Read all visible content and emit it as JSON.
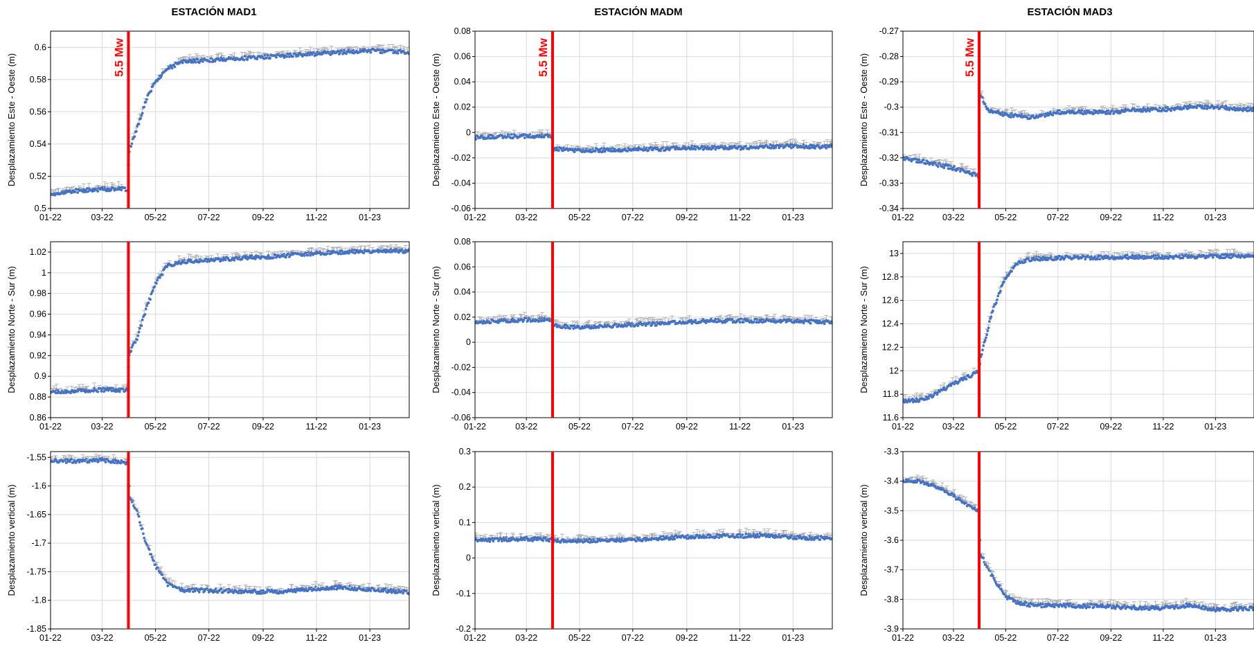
{
  "figure": {
    "column_titles": [
      "ESTACIÓN MAD1",
      "ESTACIÓN MADM",
      "ESTACIÓN MAD3"
    ],
    "earthquake_label": "5.5 Mw",
    "event_date": "2022-03-31",
    "colors": {
      "points": "#4472c4",
      "errorbars": "#a6a6a6",
      "event_line": "#ff0000",
      "grid": "#d9d9d9",
      "axis": "#000000"
    }
  },
  "chart_data": [
    {
      "id": "mad1-ew",
      "station": "ESTACIÓN MAD1",
      "type": "scatter",
      "ylabel": "Desplazamiento Este - Oeste (m)",
      "xlim": [
        "2022-01-01",
        "2023-02-15"
      ],
      "ylim": [
        0.5,
        0.61
      ],
      "yticks": [
        0.5,
        0.52,
        0.54,
        0.56,
        0.58,
        0.6
      ],
      "ytick_labels": [
        "0.5",
        "0.52",
        "0.54",
        "0.56",
        "0.58",
        "0.6"
      ],
      "xticks": [
        "2022-01-01",
        "2022-03-01",
        "2022-05-01",
        "2022-07-01",
        "2022-09-01",
        "2022-11-01",
        "2023-01-01"
      ],
      "xtick_labels": [
        "01-22",
        "03-22",
        "05-22",
        "07-22",
        "09-22",
        "11-22",
        "01-23"
      ],
      "event_line_x": "2022-03-31",
      "show_event_label": true,
      "series": [
        {
          "x": [
            "2022-01-01",
            "2022-02-01",
            "2022-03-01",
            "2022-03-30",
            "2022-04-01",
            "2022-04-10",
            "2022-04-20",
            "2022-05-01",
            "2022-05-15",
            "2022-06-01",
            "2022-07-01",
            "2022-08-01",
            "2022-09-01",
            "2022-10-01",
            "2022-11-01",
            "2022-12-01",
            "2023-01-01",
            "2023-02-15"
          ],
          "y": [
            0.509,
            0.511,
            0.512,
            0.512,
            0.536,
            0.55,
            0.567,
            0.579,
            0.587,
            0.591,
            0.592,
            0.593,
            0.594,
            0.595,
            0.596,
            0.597,
            0.598,
            0.597
          ]
        }
      ]
    },
    {
      "id": "mad1-ns",
      "station": "ESTACIÓN MAD1",
      "type": "scatter",
      "ylabel": "Desplazamiento Norte - Sur (m)",
      "xlim": [
        "2022-01-01",
        "2023-02-15"
      ],
      "ylim": [
        0.86,
        1.03
      ],
      "yticks": [
        0.86,
        0.88,
        0.9,
        0.92,
        0.94,
        0.96,
        0.98,
        1.0,
        1.02
      ],
      "ytick_labels": [
        "0.86",
        "0.88",
        "0.9",
        "0.92",
        "0.94",
        "0.96",
        "0.98",
        "1",
        "1.02"
      ],
      "xticks": [
        "2022-01-01",
        "2022-03-01",
        "2022-05-01",
        "2022-07-01",
        "2022-09-01",
        "2022-11-01",
        "2023-01-01"
      ],
      "xtick_labels": [
        "01-22",
        "03-22",
        "05-22",
        "07-22",
        "09-22",
        "11-22",
        "01-23"
      ],
      "event_line_x": "2022-03-31",
      "show_event_label": false,
      "series": [
        {
          "x": [
            "2022-01-01",
            "2022-02-01",
            "2022-03-01",
            "2022-03-30",
            "2022-04-01",
            "2022-04-10",
            "2022-04-20",
            "2022-05-01",
            "2022-05-15",
            "2022-06-01",
            "2022-07-01",
            "2022-08-01",
            "2022-09-01",
            "2022-10-01",
            "2022-11-01",
            "2022-12-01",
            "2023-01-01",
            "2023-02-15"
          ],
          "y": [
            0.885,
            0.886,
            0.887,
            0.887,
            0.922,
            0.937,
            0.964,
            0.99,
            1.007,
            1.011,
            1.012,
            1.014,
            1.015,
            1.017,
            1.019,
            1.02,
            1.021,
            1.021
          ]
        }
      ]
    },
    {
      "id": "mad1-v",
      "station": "ESTACIÓN MAD1",
      "type": "scatter",
      "ylabel": "Desplazamiento vertical (m)",
      "xlim": [
        "2022-01-01",
        "2023-02-15"
      ],
      "ylim": [
        -1.85,
        -1.54
      ],
      "yticks": [
        -1.85,
        -1.8,
        -1.75,
        -1.7,
        -1.65,
        -1.6,
        -1.55
      ],
      "ytick_labels": [
        "-1.85",
        "-1.8",
        "-1.75",
        "-1.7",
        "-1.65",
        "-1.6",
        "-1.55"
      ],
      "xticks": [
        "2022-01-01",
        "2022-03-01",
        "2022-05-01",
        "2022-07-01",
        "2022-09-01",
        "2022-11-01",
        "2023-01-01"
      ],
      "xtick_labels": [
        "01-22",
        "03-22",
        "05-22",
        "07-22",
        "09-22",
        "11-22",
        "01-23"
      ],
      "event_line_x": "2022-03-31",
      "show_event_label": false,
      "series": [
        {
          "x": [
            "2022-01-01",
            "2022-02-01",
            "2022-03-01",
            "2022-03-30",
            "2022-04-02",
            "2022-04-10",
            "2022-04-20",
            "2022-05-01",
            "2022-05-15",
            "2022-06-01",
            "2022-07-01",
            "2022-08-01",
            "2022-09-01",
            "2022-10-01",
            "2022-11-01",
            "2022-12-01",
            "2023-01-01",
            "2023-02-15"
          ],
          "y": [
            -1.557,
            -1.556,
            -1.555,
            -1.56,
            -1.618,
            -1.645,
            -1.7,
            -1.74,
            -1.772,
            -1.782,
            -1.783,
            -1.784,
            -1.785,
            -1.784,
            -1.779,
            -1.777,
            -1.781,
            -1.786
          ]
        }
      ]
    },
    {
      "id": "madm-ew",
      "station": "ESTACIÓN MADM",
      "type": "scatter",
      "ylabel": "Desplazamiento Este - Oeste (m)",
      "xlim": [
        "2022-01-01",
        "2023-02-15"
      ],
      "ylim": [
        -0.06,
        0.08
      ],
      "yticks": [
        -0.06,
        -0.04,
        -0.02,
        0,
        0.02,
        0.04,
        0.06,
        0.08
      ],
      "ytick_labels": [
        "-0.06",
        "-0.04",
        "-0.02",
        "0",
        "0.02",
        "0.04",
        "0.06",
        "0.08"
      ],
      "xticks": [
        "2022-01-01",
        "2022-03-01",
        "2022-05-01",
        "2022-07-01",
        "2022-09-01",
        "2022-11-01",
        "2023-01-01"
      ],
      "xtick_labels": [
        "01-22",
        "03-22",
        "05-22",
        "07-22",
        "09-22",
        "11-22",
        "01-23"
      ],
      "event_line_x": "2022-03-31",
      "show_event_label": true,
      "series": [
        {
          "x": [
            "2022-01-01",
            "2022-02-01",
            "2022-03-01",
            "2022-03-30",
            "2022-04-01",
            "2022-05-01",
            "2022-06-01",
            "2022-07-01",
            "2022-08-01",
            "2022-09-01",
            "2022-10-01",
            "2022-11-01",
            "2022-12-01",
            "2023-01-01",
            "2023-02-15"
          ],
          "y": [
            -0.004,
            -0.003,
            -0.003,
            -0.003,
            -0.013,
            -0.014,
            -0.014,
            -0.013,
            -0.013,
            -0.012,
            -0.012,
            -0.012,
            -0.011,
            -0.011,
            -0.011
          ]
        }
      ]
    },
    {
      "id": "madm-ns",
      "station": "ESTACIÓN MADM",
      "type": "scatter",
      "ylabel": "Desplazamiento Norte - Sur (m)",
      "xlim": [
        "2022-01-01",
        "2023-02-15"
      ],
      "ylim": [
        -0.06,
        0.08
      ],
      "yticks": [
        -0.06,
        -0.04,
        -0.02,
        0,
        0.02,
        0.04,
        0.06,
        0.08
      ],
      "ytick_labels": [
        "-0.06",
        "-0.04",
        "-0.02",
        "0",
        "0.02",
        "0.04",
        "0.06",
        "0.08"
      ],
      "xticks": [
        "2022-01-01",
        "2022-03-01",
        "2022-05-01",
        "2022-07-01",
        "2022-09-01",
        "2022-11-01",
        "2023-01-01"
      ],
      "xtick_labels": [
        "01-22",
        "03-22",
        "05-22",
        "07-22",
        "09-22",
        "11-22",
        "01-23"
      ],
      "event_line_x": "2022-03-31",
      "show_event_label": false,
      "series": [
        {
          "x": [
            "2022-01-01",
            "2022-02-01",
            "2022-03-01",
            "2022-03-30",
            "2022-04-02",
            "2022-05-01",
            "2022-06-01",
            "2022-07-01",
            "2022-08-01",
            "2022-09-01",
            "2022-10-01",
            "2022-11-01",
            "2022-12-01",
            "2023-01-01",
            "2023-02-15"
          ],
          "y": [
            0.016,
            0.017,
            0.018,
            0.018,
            0.013,
            0.012,
            0.013,
            0.014,
            0.015,
            0.016,
            0.017,
            0.017,
            0.017,
            0.017,
            0.016
          ]
        }
      ]
    },
    {
      "id": "madm-v",
      "station": "ESTACIÓN MADM",
      "type": "scatter",
      "ylabel": "Desplazamiento vertical (m)",
      "xlim": [
        "2022-01-01",
        "2023-02-15"
      ],
      "ylim": [
        -0.2,
        0.3
      ],
      "yticks": [
        -0.2,
        -0.1,
        0,
        0.1,
        0.2,
        0.3
      ],
      "ytick_labels": [
        "-0.2",
        "-0.1",
        "0",
        "0.1",
        "0.2",
        "0.3"
      ],
      "xticks": [
        "2022-01-01",
        "2022-03-01",
        "2022-05-01",
        "2022-07-01",
        "2022-09-01",
        "2022-11-01",
        "2023-01-01"
      ],
      "xtick_labels": [
        "01-22",
        "03-22",
        "05-22",
        "07-22",
        "09-22",
        "11-22",
        "01-23"
      ],
      "event_line_x": "2022-03-31",
      "show_event_label": false,
      "series": [
        {
          "x": [
            "2022-01-01",
            "2022-02-01",
            "2022-03-01",
            "2022-03-30",
            "2022-04-02",
            "2022-05-01",
            "2022-06-01",
            "2022-07-01",
            "2022-08-01",
            "2022-09-01",
            "2022-10-01",
            "2022-11-01",
            "2022-12-01",
            "2023-01-01",
            "2023-02-15"
          ],
          "y": [
            0.05,
            0.052,
            0.054,
            0.052,
            0.048,
            0.048,
            0.05,
            0.052,
            0.055,
            0.06,
            0.062,
            0.062,
            0.065,
            0.058,
            0.056
          ]
        }
      ]
    },
    {
      "id": "mad3-ew",
      "station": "ESTACIÓN MAD3",
      "type": "scatter",
      "ylabel": "Desplazamiento Este - Oeste (m)",
      "xlim": [
        "2022-01-01",
        "2023-02-15"
      ],
      "ylim": [
        -0.34,
        -0.27
      ],
      "yticks": [
        -0.34,
        -0.33,
        -0.32,
        -0.31,
        -0.3,
        -0.29,
        -0.28,
        -0.27
      ],
      "ytick_labels": [
        "-0.34",
        "-0.33",
        "-0.32",
        "-0.31",
        "-0.3",
        "-0.29",
        "-0.28",
        "-0.27"
      ],
      "xticks": [
        "2022-01-01",
        "2022-03-01",
        "2022-05-01",
        "2022-07-01",
        "2022-09-01",
        "2022-11-01",
        "2023-01-01"
      ],
      "xtick_labels": [
        "01-22",
        "03-22",
        "05-22",
        "07-22",
        "09-22",
        "11-22",
        "01-23"
      ],
      "event_line_x": "2022-03-31",
      "show_event_label": true,
      "series": [
        {
          "x": [
            "2022-01-01",
            "2022-02-01",
            "2022-03-01",
            "2022-03-30",
            "2022-04-01",
            "2022-04-10",
            "2022-05-01",
            "2022-06-01",
            "2022-07-01",
            "2022-08-01",
            "2022-09-01",
            "2022-10-01",
            "2022-11-01",
            "2022-12-01",
            "2023-01-01",
            "2023-02-15"
          ],
          "y": [
            -0.32,
            -0.322,
            -0.324,
            -0.327,
            -0.295,
            -0.301,
            -0.303,
            -0.304,
            -0.302,
            -0.302,
            -0.302,
            -0.301,
            -0.301,
            -0.3,
            -0.3,
            -0.301
          ]
        }
      ]
    },
    {
      "id": "mad3-ns",
      "station": "ESTACIÓN MAD3",
      "type": "scatter",
      "ylabel": "Desplazamiento Norte - Sur (m)",
      "xlim": [
        "2022-01-01",
        "2023-02-15"
      ],
      "ylim": [
        11.6,
        13.1
      ],
      "yticks": [
        11.6,
        11.8,
        12.0,
        12.2,
        12.4,
        12.6,
        12.8,
        13.0
      ],
      "ytick_labels": [
        "11.6",
        "11.8",
        "12",
        "12.2",
        "12.4",
        "12.6",
        "12.8",
        "13"
      ],
      "xticks": [
        "2022-01-01",
        "2022-03-01",
        "2022-05-01",
        "2022-07-01",
        "2022-09-01",
        "2022-11-01",
        "2023-01-01"
      ],
      "xtick_labels": [
        "01-22",
        "03-22",
        "05-22",
        "07-22",
        "09-22",
        "11-22",
        "01-23"
      ],
      "event_line_x": "2022-03-31",
      "show_event_label": false,
      "series": [
        {
          "x": [
            "2022-01-01",
            "2022-01-20",
            "2022-02-05",
            "2022-02-20",
            "2022-03-10",
            "2022-03-30",
            "2022-04-02",
            "2022-04-15",
            "2022-05-01",
            "2022-05-15",
            "2022-06-01",
            "2022-07-01",
            "2022-09-01",
            "2022-11-01",
            "2023-01-01",
            "2023-02-15"
          ],
          "y": [
            11.74,
            11.75,
            11.79,
            11.85,
            11.92,
            11.99,
            12.11,
            12.5,
            12.8,
            12.92,
            12.955,
            12.962,
            12.968,
            12.972,
            12.976,
            12.98
          ]
        }
      ]
    },
    {
      "id": "mad3-v",
      "station": "ESTACIÓN MAD3",
      "type": "scatter",
      "ylabel": "Desplazamiento vertical (m)",
      "xlim": [
        "2022-01-01",
        "2023-02-15"
      ],
      "ylim": [
        -3.9,
        -3.3
      ],
      "yticks": [
        -3.9,
        -3.8,
        -3.7,
        -3.6,
        -3.5,
        -3.4,
        -3.3
      ],
      "ytick_labels": [
        "-3.9",
        "-3.8",
        "-3.7",
        "-3.6",
        "-3.5",
        "-3.4",
        "-3.3"
      ],
      "xticks": [
        "2022-01-01",
        "2022-03-01",
        "2022-05-01",
        "2022-07-01",
        "2022-09-01",
        "2022-11-01",
        "2023-01-01"
      ],
      "xtick_labels": [
        "01-22",
        "03-22",
        "05-22",
        "07-22",
        "09-22",
        "11-22",
        "01-23"
      ],
      "event_line_x": "2022-03-31",
      "show_event_label": false,
      "series": [
        {
          "x": [
            "2022-01-01",
            "2022-01-20",
            "2022-02-10",
            "2022-03-01",
            "2022-03-30",
            "2022-04-02",
            "2022-04-15",
            "2022-05-01",
            "2022-05-15",
            "2022-06-01",
            "2022-07-01",
            "2022-09-01",
            "2022-11-01",
            "2022-12-01",
            "2023-01-01",
            "2023-02-15"
          ],
          "y": [
            -3.4,
            -3.4,
            -3.42,
            -3.45,
            -3.5,
            -3.65,
            -3.72,
            -3.79,
            -3.81,
            -3.82,
            -3.82,
            -3.825,
            -3.83,
            -3.82,
            -3.835,
            -3.83
          ]
        }
      ]
    }
  ]
}
